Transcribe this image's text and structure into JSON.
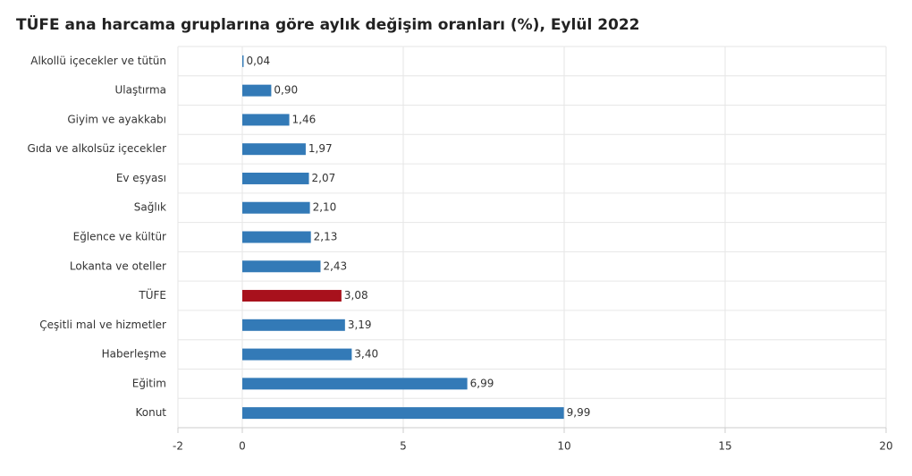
{
  "chart_data": {
    "type": "hbar",
    "title": "TÜFE ana harcama gruplarına göre aylık değişim oranları (%), Eylül 2022",
    "categories": [
      "Alkollü içecekler ve tütün",
      "Ulaştırma",
      "Giyim ve ayakkabı",
      "Gıda ve alkolsüz içecekler",
      "Ev eşyası",
      "Sağlık",
      "Eğlence ve kültür",
      "Lokanta ve oteller",
      "TÜFE",
      "Çeşitli mal ve hizmetler",
      "Haberleşme",
      "Eğitim",
      "Konut"
    ],
    "values": [
      0.04,
      0.9,
      1.46,
      1.97,
      2.07,
      2.1,
      2.13,
      2.43,
      3.08,
      3.19,
      3.4,
      6.99,
      9.99
    ],
    "value_labels": [
      "0,04",
      "0,90",
      "1,46",
      "1,97",
      "2,07",
      "2,10",
      "2,13",
      "2,43",
      "3,08",
      "3,19",
      "3,40",
      "6,99",
      "9,99"
    ],
    "colors": [
      "#337ab7",
      "#337ab7",
      "#337ab7",
      "#337ab7",
      "#337ab7",
      "#337ab7",
      "#337ab7",
      "#337ab7",
      "#a8111c",
      "#337ab7",
      "#337ab7",
      "#337ab7",
      "#337ab7"
    ],
    "xlim": [
      -2,
      20
    ],
    "xticks": [
      -2,
      0,
      5,
      10,
      15,
      20
    ],
    "grid": true
  }
}
